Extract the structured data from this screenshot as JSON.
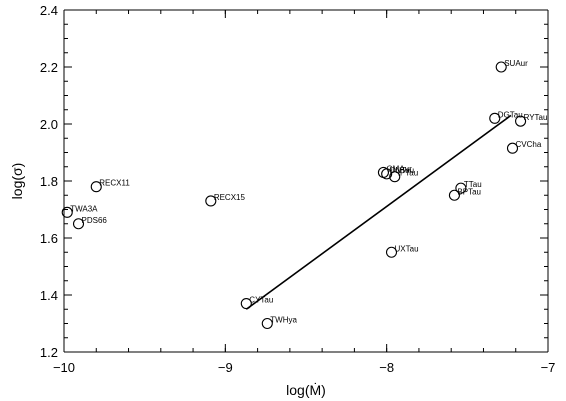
{
  "chart_data": {
    "type": "scatter",
    "title": "",
    "xlabel": "log(Ṁ)",
    "ylabel": "log(σ)",
    "xlim": [
      -10,
      -7
    ],
    "ylim": [
      1.2,
      2.4
    ],
    "xticks": [
      -10,
      -9,
      -8,
      -7
    ],
    "xtick_labels": [
      "−10",
      "−9",
      "−8",
      "−7"
    ],
    "yticks": [
      1.2,
      1.4,
      1.6,
      1.8,
      2.0,
      2.2,
      2.4
    ],
    "ytick_labels": [
      "1.2",
      "1.4",
      "1.6",
      "1.8",
      "2.0",
      "2.2",
      "2.4"
    ],
    "grid": false,
    "points": [
      {
        "label": "SUAur",
        "x": -7.29,
        "y": 2.2
      },
      {
        "label": "DGTau",
        "x": -7.33,
        "y": 2.02
      },
      {
        "label": "RYTau",
        "x": -7.17,
        "y": 2.01
      },
      {
        "label": "CVCha",
        "x": -7.22,
        "y": 1.915
      },
      {
        "label": "RECX11",
        "x": -9.8,
        "y": 1.78
      },
      {
        "label": "TWA3A",
        "x": -9.98,
        "y": 1.69
      },
      {
        "label": "PDS66",
        "x": -9.91,
        "y": 1.65
      },
      {
        "label": "RECX15",
        "x": -9.09,
        "y": 1.73
      },
      {
        "label": "GMAur",
        "x": -8.02,
        "y": 1.83
      },
      {
        "label": "DNTau",
        "x": -8.0,
        "y": 1.825
      },
      {
        "label": "IPTau",
        "x": -7.95,
        "y": 1.815
      },
      {
        "label": "TTau",
        "x": -7.54,
        "y": 1.775
      },
      {
        "label": "BPTau",
        "x": -7.58,
        "y": 1.75
      },
      {
        "label": "UXTau",
        "x": -7.97,
        "y": 1.55
      },
      {
        "label": "CYTau",
        "x": -8.87,
        "y": 1.37
      },
      {
        "label": "TWHya",
        "x": -8.74,
        "y": 1.3
      }
    ],
    "fit_line": {
      "x": [
        -8.87,
        -7.23
      ],
      "y": [
        1.35,
        2.03
      ]
    }
  }
}
